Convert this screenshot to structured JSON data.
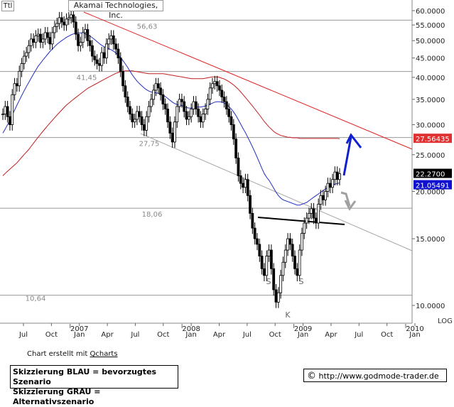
{
  "header": {
    "symbol_box": "Ttl",
    "company": "Akamai Technologies, Inc."
  },
  "chart_data": {
    "type": "candlestick",
    "title": "Akamai Technologies, Inc.",
    "y_scale": "log",
    "ylim": [
      8.6,
      64
    ],
    "y_ticks": [
      "60.0000",
      "55.0000",
      "50.0000",
      "45.0000",
      "40.0000",
      "35.0000",
      "30.0000",
      "25.0000",
      "20.0000",
      "15.0000",
      "10.0000"
    ],
    "y_tick_values": [
      60,
      55,
      50,
      45,
      40,
      35,
      30,
      25,
      20,
      15,
      10
    ],
    "scale_label": "LOG",
    "x_month_labels": [
      "Jul",
      "Oct",
      "Jan",
      "Apr",
      "Jul",
      "Oct",
      "Jan",
      "Apr",
      "Jul",
      "Oct",
      "Jan",
      "Apr",
      "Jul",
      "Oct",
      "Jan"
    ],
    "x_year_labels": [
      {
        "year": "2007",
        "month_index": 2
      },
      {
        "year": "2008",
        "month_index": 6
      },
      {
        "year": "2009",
        "month_index": 10
      },
      {
        "year": "2010",
        "month_index": 14
      }
    ],
    "x_range": [
      "Jul 2006",
      "Mar 2010"
    ],
    "grid": true,
    "horizontal_levels": [
      {
        "value": 56.63,
        "label": "56,63"
      },
      {
        "value": 41.45,
        "label": "41,45"
      },
      {
        "value": 27.75,
        "label": "27,75"
      },
      {
        "value": 18.06,
        "label": "18,06"
      },
      {
        "value": 10.64,
        "label": "10,64"
      }
    ],
    "value_badges": [
      {
        "label": "27.56435",
        "color": "#e03030",
        "text_color": "#ffffff"
      },
      {
        "label": "22.2700",
        "color": "#000000",
        "text_color": "#ffffff"
      },
      {
        "label": "21.05491",
        "color": "#1010d0",
        "text_color": "#ffffff"
      }
    ],
    "price_weekly": [
      32.0,
      33.5,
      31.5,
      30.0,
      36.0,
      38.5,
      38.0,
      41.5,
      43.5,
      45.5,
      46.5,
      48.5,
      50.5,
      49.5,
      51.5,
      52.0,
      49.5,
      50.5,
      52.5,
      51.0,
      49.0,
      52.5,
      54.5,
      55.5,
      57.5,
      56.0,
      55.0,
      57.0,
      57.5,
      58.5,
      56.0,
      52.0,
      48.5,
      49.5,
      52.5,
      53.5,
      50.0,
      48.5,
      45.5,
      44.5,
      43.5,
      43.0,
      46.5,
      45.0,
      49.0,
      50.5,
      51.5,
      49.0,
      47.5,
      45.0,
      41.5,
      38.0,
      35.5,
      33.5,
      32.0,
      30.5,
      31.0,
      32.5,
      31.5,
      30.0,
      29.0,
      31.5,
      33.5,
      35.0,
      37.0,
      38.5,
      37.5,
      36.0,
      34.0,
      33.0,
      30.5,
      28.5,
      27.0,
      30.5,
      33.5,
      35.0,
      34.5,
      32.5,
      31.0,
      31.5,
      33.0,
      34.5,
      33.0,
      31.5,
      30.5,
      32.0,
      33.0,
      35.0,
      37.5,
      38.5,
      39.0,
      38.0,
      37.0,
      35.5,
      34.5,
      33.0,
      31.5,
      30.0,
      27.5,
      24.5,
      22.0,
      21.0,
      20.5,
      21.5,
      19.5,
      17.5,
      16.0,
      15.0,
      14.5,
      13.5,
      12.5,
      12.0,
      13.5,
      14.0,
      12.5,
      11.0,
      10.2,
      10.8,
      12.0,
      13.0,
      14.0,
      15.0,
      14.5,
      13.5,
      12.5,
      12.0,
      14.0,
      15.5,
      16.5,
      17.0,
      17.5,
      18.0,
      17.0,
      16.5,
      18.5,
      19.5,
      19.0,
      20.0,
      21.0,
      20.5,
      21.5,
      22.5,
      21.5,
      22.27
    ],
    "ma_blue_weekly": [
      28.5,
      29.2,
      30.0,
      30.8,
      31.8,
      32.8,
      33.8,
      34.8,
      35.8,
      36.8,
      37.8,
      38.8,
      39.8,
      40.8,
      41.8,
      42.8,
      43.6,
      44.4,
      45.2,
      46.0,
      46.8,
      47.5,
      48.2,
      48.9,
      49.5,
      50.0,
      50.5,
      51.0,
      51.4,
      51.8,
      52.1,
      52.3,
      52.4,
      52.4,
      52.3,
      52.1,
      51.8,
      51.4,
      50.9,
      50.3,
      49.7,
      49.1,
      48.6,
      48.2,
      47.9,
      47.6,
      47.3,
      46.9,
      46.4,
      45.8,
      45.1,
      44.3,
      43.4,
      42.5,
      41.5,
      40.6,
      39.8,
      39.1,
      38.5,
      38.0,
      37.5,
      37.1,
      36.8,
      36.6,
      36.5,
      36.4,
      36.3,
      36.1,
      35.9,
      35.6,
      35.2,
      34.8,
      34.4,
      34.1,
      33.9,
      33.8,
      33.7,
      33.5,
      33.3,
      33.2,
      33.2,
      33.3,
      33.4,
      33.4,
      33.4,
      33.5,
      33.6,
      33.8,
      34.0,
      34.2,
      34.4,
      34.5,
      34.5,
      34.4,
      34.2,
      33.9,
      33.5,
      33.0,
      32.4,
      31.7,
      30.9,
      30.1,
      29.3,
      28.6,
      27.8,
      27.0,
      26.2,
      25.4,
      24.6,
      23.8,
      23.0,
      22.3,
      21.8,
      21.4,
      20.9,
      20.4,
      19.9,
      19.5,
      19.2,
      19.0,
      18.9,
      18.8,
      18.7,
      18.6,
      18.5,
      18.4,
      18.4,
      18.5,
      18.6,
      18.7,
      18.9,
      19.1,
      19.3,
      19.5,
      19.7,
      19.9,
      20.1,
      20.3,
      20.5,
      20.6,
      20.8,
      20.9,
      21.0,
      21.05
    ],
    "ma_red_weekly": [
      22.0,
      22.3,
      22.6,
      22.9,
      23.2,
      23.5,
      23.8,
      24.2,
      24.6,
      25.0,
      25.4,
      25.8,
      26.3,
      26.8,
      27.3,
      27.8,
      28.3,
      28.8,
      29.3,
      29.8,
      30.3,
      30.8,
      31.3,
      31.8,
      32.3,
      32.8,
      33.3,
      33.8,
      34.2,
      34.6,
      35.0,
      35.4,
      35.8,
      36.2,
      36.6,
      37.0,
      37.4,
      37.7,
      38.0,
      38.3,
      38.6,
      38.9,
      39.2,
      39.5,
      39.8,
      40.1,
      40.4,
      40.7,
      41.0,
      41.2,
      41.4,
      41.5,
      41.6,
      41.6,
      41.6,
      41.6,
      41.5,
      41.4,
      41.3,
      41.2,
      41.1,
      41.0,
      40.9,
      40.9,
      40.9,
      40.9,
      40.9,
      40.9,
      40.9,
      40.8,
      40.7,
      40.6,
      40.5,
      40.4,
      40.3,
      40.2,
      40.1,
      40.0,
      39.9,
      39.8,
      39.7,
      39.7,
      39.7,
      39.7,
      39.7,
      39.7,
      39.8,
      39.9,
      40.0,
      40.1,
      40.1,
      40.1,
      40.0,
      39.8,
      39.6,
      39.3,
      39.0,
      38.6,
      38.2,
      37.7,
      37.2,
      36.6,
      36.0,
      35.4,
      34.8,
      34.2,
      33.6,
      33.0,
      32.4,
      31.8,
      31.2,
      30.6,
      30.1,
      29.6,
      29.2,
      28.8,
      28.5,
      28.3,
      28.1,
      28.0,
      27.9,
      27.8,
      27.8,
      27.7,
      27.7,
      27.7,
      27.6,
      27.6,
      27.6,
      27.6,
      27.6,
      27.6,
      27.6,
      27.6,
      27.6,
      27.6,
      27.6,
      27.6,
      27.6,
      27.6,
      27.6,
      27.6,
      27.6,
      27.56
    ],
    "annotations": [
      {
        "text": "S"
      },
      {
        "text": "S"
      },
      {
        "text": "K"
      }
    ],
    "legend": []
  },
  "footer": {
    "credit_prefix": "Chart erstellt mit ",
    "credit_link": "Qcharts",
    "scenario_blue": "Skizzierung BLAU = bevorzugtes Szenario",
    "scenario_grey": "Skizzierung GRAU = Alternativszenario",
    "copyright_symbol": "©",
    "url": "http://www.godmode-trader.de"
  },
  "colors": {
    "price": "#000000",
    "ma_blue": "#2030c0",
    "ma_red": "#c02020",
    "trend_red": "#e02020",
    "trend_grey": "#a0a0a0",
    "scenario_blue": "#1020d0",
    "scenario_grey": "#a0a0a0",
    "grid": "#b0b0b0"
  }
}
